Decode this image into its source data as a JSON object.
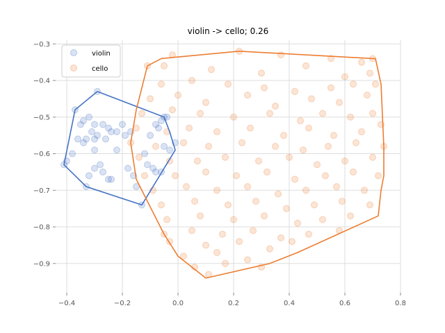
{
  "chart_data": {
    "type": "scatter",
    "title": "violin -> cello; 0.26",
    "xlim": [
      -0.44,
      0.8
    ],
    "ylim": [
      -0.98,
      -0.29
    ],
    "xticks": [
      -0.4,
      -0.2,
      0.0,
      0.2,
      0.4,
      0.6,
      0.8
    ],
    "xtick_labels": [
      "−0.4",
      "−0.2",
      "0.0",
      "0.2",
      "0.4",
      "0.6",
      "0.8"
    ],
    "yticks": [
      -0.3,
      -0.4,
      -0.5,
      -0.6,
      -0.7,
      -0.8,
      -0.9
    ],
    "ytick_labels": [
      "−0.3",
      "−0.4",
      "−0.5",
      "−0.6",
      "−0.7",
      "−0.8",
      "−0.9"
    ],
    "grid": true,
    "legend_position": "top-left",
    "series": [
      {
        "name": "violin",
        "color": "#4472c4",
        "points": [
          [
            -0.29,
            -0.43
          ],
          [
            -0.37,
            -0.48
          ],
          [
            -0.32,
            -0.5
          ],
          [
            -0.34,
            -0.51
          ],
          [
            -0.35,
            -0.52
          ],
          [
            -0.3,
            -0.52
          ],
          [
            -0.27,
            -0.52
          ],
          [
            -0.25,
            -0.53
          ],
          [
            -0.31,
            -0.54
          ],
          [
            -0.29,
            -0.55
          ],
          [
            -0.36,
            -0.56
          ],
          [
            -0.33,
            -0.56
          ],
          [
            -0.3,
            -0.56
          ],
          [
            -0.34,
            -0.57
          ],
          [
            -0.26,
            -0.56
          ],
          [
            -0.24,
            -0.54
          ],
          [
            -0.22,
            -0.54
          ],
          [
            -0.2,
            -0.52
          ],
          [
            -0.19,
            -0.55
          ],
          [
            -0.17,
            -0.54
          ],
          [
            -0.38,
            -0.6
          ],
          [
            -0.3,
            -0.59
          ],
          [
            -0.22,
            -0.59
          ],
          [
            -0.28,
            -0.63
          ],
          [
            -0.3,
            -0.64
          ],
          [
            -0.32,
            -0.66
          ],
          [
            -0.27,
            -0.65
          ],
          [
            -0.24,
            -0.67
          ],
          [
            -0.25,
            -0.67
          ],
          [
            -0.33,
            -0.69
          ],
          [
            -0.4,
            -0.62
          ],
          [
            -0.41,
            -0.63
          ],
          [
            -0.18,
            -0.64
          ],
          [
            -0.16,
            -0.66
          ],
          [
            -0.15,
            -0.69
          ],
          [
            -0.13,
            -0.74
          ],
          [
            -0.12,
            -0.6
          ],
          [
            -0.11,
            -0.63
          ],
          [
            -0.09,
            -0.64
          ],
          [
            -0.08,
            -0.65
          ],
          [
            -0.06,
            -0.65
          ],
          [
            -0.1,
            -0.55
          ],
          [
            -0.08,
            -0.52
          ],
          [
            -0.06,
            -0.51
          ],
          [
            -0.05,
            -0.5
          ],
          [
            -0.04,
            -0.5
          ],
          [
            -0.07,
            -0.53
          ],
          [
            -0.05,
            -0.58
          ],
          [
            -0.03,
            -0.59
          ],
          [
            -0.01,
            -0.57
          ]
        ]
      },
      {
        "name": "cello",
        "color": "#ed7d31",
        "points": [
          [
            -0.11,
            -0.36
          ],
          [
            -0.05,
            -0.36
          ],
          [
            -0.02,
            -0.33
          ],
          [
            0.22,
            -0.32
          ],
          [
            0.37,
            -0.33
          ],
          [
            0.55,
            -0.34
          ],
          [
            0.7,
            -0.34
          ],
          [
            0.66,
            -0.35
          ],
          [
            0.12,
            -0.37
          ],
          [
            0.3,
            -0.38
          ],
          [
            0.46,
            -0.36
          ],
          [
            0.6,
            -0.39
          ],
          [
            0.69,
            -0.38
          ],
          [
            -0.06,
            -0.41
          ],
          [
            0.05,
            -0.4
          ],
          [
            0.18,
            -0.41
          ],
          [
            0.31,
            -0.42
          ],
          [
            0.42,
            -0.43
          ],
          [
            0.55,
            -0.42
          ],
          [
            0.63,
            -0.41
          ],
          [
            0.71,
            -0.41
          ],
          [
            -0.1,
            -0.45
          ],
          [
            0.0,
            -0.44
          ],
          [
            0.1,
            -0.46
          ],
          [
            0.25,
            -0.44
          ],
          [
            0.35,
            -0.47
          ],
          [
            0.48,
            -0.45
          ],
          [
            0.58,
            -0.46
          ],
          [
            0.68,
            -0.44
          ],
          [
            -0.13,
            -0.49
          ],
          [
            -0.02,
            -0.48
          ],
          [
            0.08,
            -0.49
          ],
          [
            0.2,
            -0.5
          ],
          [
            0.33,
            -0.49
          ],
          [
            0.44,
            -0.51
          ],
          [
            0.52,
            -0.49
          ],
          [
            0.62,
            -0.5
          ],
          [
            0.7,
            -0.49
          ],
          [
            -0.15,
            -0.53
          ],
          [
            -0.04,
            -0.54
          ],
          [
            0.04,
            -0.53
          ],
          [
            0.14,
            -0.54
          ],
          [
            0.26,
            -0.53
          ],
          [
            0.38,
            -0.55
          ],
          [
            0.47,
            -0.53
          ],
          [
            0.56,
            -0.55
          ],
          [
            0.66,
            -0.54
          ],
          [
            0.73,
            -0.52
          ],
          [
            -0.17,
            -0.57
          ],
          [
            -0.08,
            -0.58
          ],
          [
            0.02,
            -0.57
          ],
          [
            0.11,
            -0.58
          ],
          [
            0.23,
            -0.57
          ],
          [
            0.35,
            -0.58
          ],
          [
            0.45,
            -0.59
          ],
          [
            0.54,
            -0.58
          ],
          [
            0.64,
            -0.57
          ],
          [
            0.74,
            -0.58
          ],
          [
            -0.14,
            -0.61
          ],
          [
            -0.03,
            -0.62
          ],
          [
            0.07,
            -0.62
          ],
          [
            0.17,
            -0.61
          ],
          [
            0.29,
            -0.62
          ],
          [
            0.4,
            -0.61
          ],
          [
            0.5,
            -0.63
          ],
          [
            0.6,
            -0.62
          ],
          [
            0.7,
            -0.61
          ],
          [
            -0.12,
            -0.66
          ],
          [
            -0.01,
            -0.66
          ],
          [
            0.1,
            -0.65
          ],
          [
            0.21,
            -0.66
          ],
          [
            0.32,
            -0.65
          ],
          [
            0.42,
            -0.67
          ],
          [
            0.53,
            -0.66
          ],
          [
            0.63,
            -0.65
          ],
          [
            0.72,
            -0.66
          ],
          [
            -0.09,
            -0.7
          ],
          [
            0.03,
            -0.69
          ],
          [
            0.14,
            -0.7
          ],
          [
            0.25,
            -0.69
          ],
          [
            0.36,
            -0.71
          ],
          [
            0.46,
            -0.7
          ],
          [
            0.57,
            -0.69
          ],
          [
            0.67,
            -0.7
          ],
          [
            -0.06,
            -0.74
          ],
          [
            0.06,
            -0.73
          ],
          [
            0.18,
            -0.74
          ],
          [
            0.28,
            -0.73
          ],
          [
            0.39,
            -0.75
          ],
          [
            0.49,
            -0.74
          ],
          [
            0.59,
            -0.73
          ],
          [
            0.69,
            -0.74
          ],
          [
            -0.04,
            -0.78
          ],
          [
            0.08,
            -0.77
          ],
          [
            0.2,
            -0.78
          ],
          [
            0.31,
            -0.77
          ],
          [
            0.43,
            -0.79
          ],
          [
            0.52,
            -0.78
          ],
          [
            0.62,
            -0.77
          ],
          [
            -0.05,
            -0.82
          ],
          [
            0.05,
            -0.81
          ],
          [
            0.16,
            -0.82
          ],
          [
            0.27,
            -0.81
          ],
          [
            0.37,
            -0.83
          ],
          [
            0.47,
            -0.82
          ],
          [
            0.58,
            -0.81
          ],
          [
            -0.03,
            -0.84
          ],
          [
            0.1,
            -0.85
          ],
          [
            0.22,
            -0.84
          ],
          [
            0.33,
            -0.86
          ],
          [
            0.41,
            -0.84
          ],
          [
            0.02,
            -0.88
          ],
          [
            0.14,
            -0.87
          ],
          [
            0.25,
            -0.89
          ],
          [
            0.06,
            -0.91
          ],
          [
            0.17,
            -0.9
          ],
          [
            0.3,
            -0.91
          ],
          [
            0.11,
            -0.93
          ]
        ]
      }
    ],
    "hulls": [
      {
        "series": "violin",
        "color": "#4472c4",
        "points": [
          [
            -0.29,
            -0.43
          ],
          [
            -0.05,
            -0.5
          ],
          [
            -0.03,
            -0.54
          ],
          [
            -0.01,
            -0.59
          ],
          [
            -0.13,
            -0.74
          ],
          [
            -0.33,
            -0.69
          ],
          [
            -0.41,
            -0.63
          ],
          [
            -0.37,
            -0.48
          ],
          [
            -0.29,
            -0.43
          ]
        ]
      },
      {
        "series": "cello",
        "color": "#ed7d31",
        "points": [
          [
            -0.11,
            -0.36
          ],
          [
            -0.06,
            -0.34
          ],
          [
            0.22,
            -0.32
          ],
          [
            0.7,
            -0.34
          ],
          [
            0.71,
            -0.34
          ],
          [
            0.73,
            -0.41
          ],
          [
            0.74,
            -0.58
          ],
          [
            0.74,
            -0.66
          ],
          [
            0.73,
            -0.7
          ],
          [
            0.72,
            -0.77
          ],
          [
            0.43,
            -0.87
          ],
          [
            0.33,
            -0.9
          ],
          [
            0.1,
            -0.94
          ],
          [
            0.0,
            -0.88
          ],
          [
            -0.05,
            -0.82
          ],
          [
            -0.15,
            -0.67
          ],
          [
            -0.17,
            -0.57
          ],
          [
            -0.15,
            -0.48
          ],
          [
            -0.11,
            -0.36
          ]
        ]
      }
    ]
  }
}
